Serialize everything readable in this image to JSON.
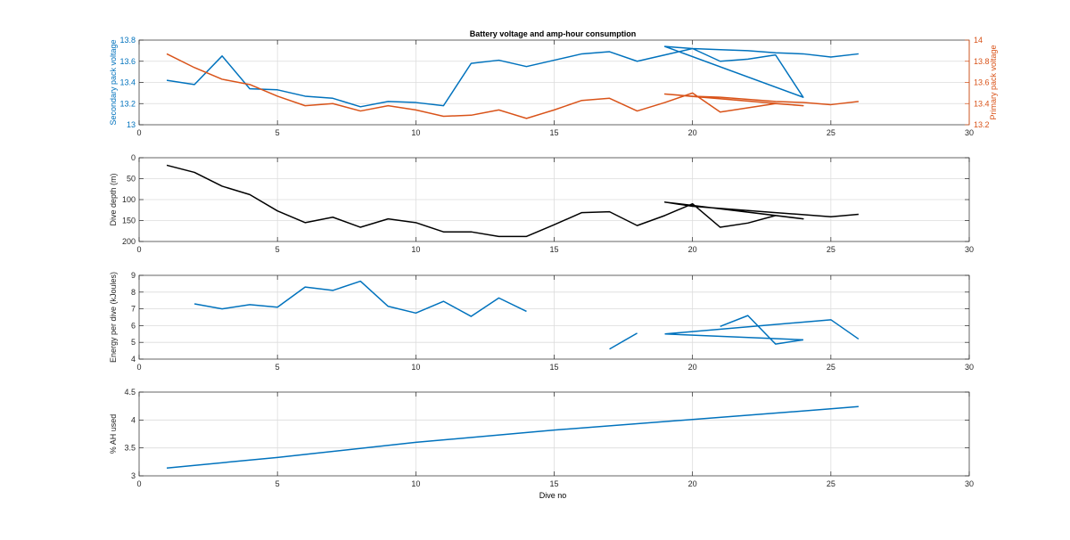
{
  "figure": {
    "title": "Battery voltage and amp-hour consumption",
    "xlabel": "Dive no"
  },
  "colors": {
    "blue": "#0072BD",
    "orange": "#D95319",
    "black": "#000000",
    "grid": "#dcdcdc",
    "axes": "#262626",
    "axis_text": "#262626"
  },
  "chart_data": [
    {
      "type": "line",
      "id": "voltage",
      "title": "Battery voltage and amp-hour consumption",
      "xlim": [
        0,
        30
      ],
      "xticks": [
        0,
        5,
        10,
        15,
        20,
        25,
        30
      ],
      "grid": true,
      "ylabel": "Secondary pack voltage",
      "ylim": [
        13,
        13.8
      ],
      "yticks": [
        13,
        13.2,
        13.4,
        13.6,
        13.8
      ],
      "ylabel_right": "Primary pack voltage",
      "ylim_right": [
        13.2,
        14
      ],
      "yticks_right": [
        13.2,
        13.4,
        13.6,
        13.8,
        14
      ],
      "series": [
        {
          "color": "blue",
          "axis": "left",
          "x": [
            1,
            2,
            3,
            4,
            5,
            6,
            7,
            8,
            9,
            10,
            11,
            12,
            13,
            14,
            15,
            16,
            17,
            18,
            19,
            20,
            21,
            22,
            23,
            24,
            19,
            20,
            21,
            22,
            23,
            24,
            25,
            26
          ],
          "y": [
            13.42,
            13.38,
            13.65,
            13.34,
            13.33,
            13.27,
            13.25,
            13.17,
            13.22,
            13.21,
            13.18,
            13.58,
            13.61,
            13.55,
            13.61,
            13.67,
            13.69,
            13.6,
            13.66,
            13.72,
            13.6,
            13.62,
            13.66,
            13.26,
            13.74,
            13.72,
            13.71,
            13.7,
            13.68,
            13.67,
            13.64,
            13.67
          ]
        },
        {
          "color": "orange",
          "axis": "right",
          "x": [
            1,
            2,
            3,
            4,
            5,
            6,
            7,
            8,
            9,
            10,
            11,
            12,
            13,
            14,
            15,
            16,
            17,
            18,
            19,
            20,
            21,
            22,
            23,
            24,
            19,
            20,
            21,
            22,
            23,
            24,
            25,
            26
          ],
          "y": [
            13.87,
            13.74,
            13.63,
            13.58,
            13.47,
            13.38,
            13.4,
            13.33,
            13.38,
            13.34,
            13.28,
            13.29,
            13.34,
            13.26,
            13.34,
            13.43,
            13.45,
            13.33,
            13.41,
            13.5,
            13.32,
            13.36,
            13.4,
            13.38,
            13.49,
            13.47,
            13.46,
            13.44,
            13.42,
            13.41,
            13.39,
            13.42
          ]
        }
      ]
    },
    {
      "type": "line",
      "id": "depth",
      "xlim": [
        0,
        30
      ],
      "xticks": [
        0,
        5,
        10,
        15,
        20,
        25,
        30
      ],
      "grid": true,
      "ylabel": "Dive depth (m)",
      "ylim": [
        0,
        200
      ],
      "yticks": [
        0,
        50,
        100,
        150,
        200
      ],
      "y_reversed": true,
      "series": [
        {
          "color": "black",
          "axis": "left",
          "x": [
            1,
            2,
            3,
            4,
            5,
            6,
            7,
            8,
            9,
            10,
            11,
            12,
            13,
            14,
            15,
            16,
            17,
            18,
            19,
            20,
            21,
            22,
            23,
            24,
            19,
            20,
            21,
            22,
            23,
            24,
            25,
            26
          ],
          "y": [
            18,
            35,
            68,
            88,
            127,
            155,
            142,
            166,
            146,
            155,
            177,
            177,
            188,
            188,
            160,
            131,
            129,
            162,
            138,
            110,
            166,
            156,
            138,
            146,
            106,
            116,
            121,
            126,
            131,
            136,
            141,
            135
          ]
        }
      ]
    },
    {
      "type": "line",
      "id": "energy",
      "xlim": [
        0,
        30
      ],
      "xticks": [
        0,
        5,
        10,
        15,
        20,
        25,
        30
      ],
      "grid": true,
      "ylabel": "Energy per dive (kJoules)",
      "ylim": [
        4,
        9
      ],
      "yticks": [
        4,
        5,
        6,
        7,
        8,
        9
      ],
      "series": [
        {
          "color": "blue",
          "axis": "left",
          "x": [
            2,
            3,
            4,
            5,
            6,
            7,
            8,
            9,
            10,
            11,
            12,
            13,
            14
          ],
          "y": [
            7.3,
            7.0,
            7.25,
            7.1,
            8.3,
            8.1,
            8.65,
            7.15,
            6.75,
            7.45,
            6.55,
            7.65,
            6.85
          ]
        },
        {
          "color": "blue",
          "axis": "left",
          "x": [
            17,
            18
          ],
          "y": [
            4.6,
            5.55
          ]
        },
        {
          "color": "blue",
          "axis": "left",
          "x": [
            21,
            22,
            23,
            24
          ],
          "y": [
            5.95,
            6.6,
            4.9,
            5.15
          ]
        },
        {
          "color": "blue",
          "axis": "left",
          "x": [
            19,
            24
          ],
          "y": [
            5.5,
            5.15
          ]
        },
        {
          "color": "blue",
          "axis": "left",
          "x": [
            19,
            25,
            26
          ],
          "y": [
            5.5,
            6.35,
            5.2
          ]
        }
      ]
    },
    {
      "type": "line",
      "id": "ah",
      "xlim": [
        0,
        30
      ],
      "xticks": [
        0,
        5,
        10,
        15,
        20,
        25,
        30
      ],
      "grid": true,
      "xlabel": "Dive no",
      "ylabel": "% AH used",
      "ylim": [
        3,
        4.5
      ],
      "yticks": [
        3,
        3.5,
        4,
        4.5
      ],
      "series": [
        {
          "color": "blue",
          "axis": "left",
          "x": [
            1,
            5,
            10,
            15,
            20,
            25,
            26
          ],
          "y": [
            3.14,
            3.33,
            3.6,
            3.82,
            4.01,
            4.2,
            4.24
          ]
        }
      ]
    }
  ]
}
